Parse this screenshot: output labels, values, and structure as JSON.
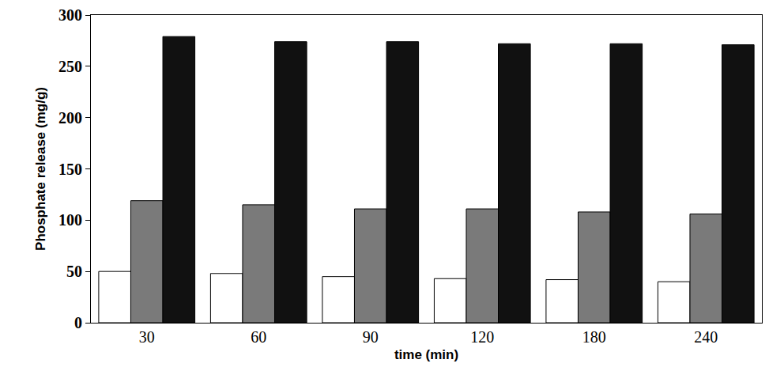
{
  "chart_data": {
    "type": "bar",
    "x_label": "time (min)",
    "y_label": "Phosphate release (mg/g)",
    "categories": [
      "30",
      "60",
      "90",
      "120",
      "180",
      "240"
    ],
    "series": [
      {
        "color": "#ffffff",
        "values": [
          50,
          48,
          45,
          43,
          42,
          40
        ]
      },
      {
        "color": "#7a7a7a",
        "values": [
          119,
          115,
          111,
          111,
          108,
          106
        ]
      },
      {
        "color": "#111111",
        "values": [
          279,
          274,
          274,
          272,
          272,
          271
        ]
      }
    ],
    "ylim": [
      0,
      300
    ],
    "yticks": [
      0,
      50,
      100,
      150,
      200,
      250,
      300
    ],
    "grid": false
  }
}
